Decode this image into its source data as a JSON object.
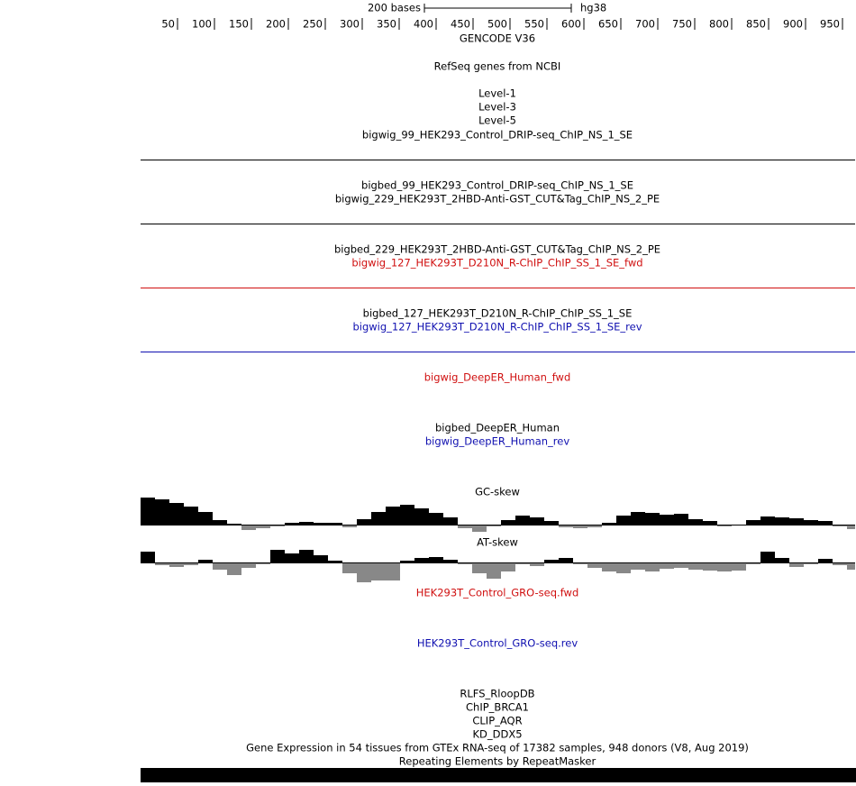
{
  "ruler": {
    "scale_label": "200 bases",
    "assembly": "hg38",
    "positions": [
      50,
      100,
      150,
      200,
      250,
      300,
      350,
      400,
      450,
      500,
      550,
      600,
      650,
      700,
      750,
      800,
      850,
      900,
      950
    ]
  },
  "tracks": [
    "GENCODE V36",
    "RefSeq genes from NCBI",
    "Level-1",
    "Level-3",
    "Level-5",
    "bigwig_99_HEK293_Control_DRIP-seq_ChIP_NS_1_SE",
    "bigbed_99_HEK293_Control_DRIP-seq_ChIP_NS_1_SE",
    "bigwig_229_HEK293T_2HBD-Anti-GST_CUT&Tag_ChIP_NS_2_PE",
    "bigbed_229_HEK293T_2HBD-Anti-GST_CUT&Tag_ChIP_NS_2_PE",
    "bigwig_127_HEK293T_D210N_R-ChIP_ChIP_SS_1_SE_fwd",
    "bigbed_127_HEK293T_D210N_R-ChIP_ChIP_SS_1_SE",
    "bigwig_127_HEK293T_D210N_R-ChIP_ChIP_SS_1_SE_rev",
    "bigwig_DeepER_Human_fwd",
    "bigbed_DeepER_Human",
    "bigwig_DeepER_Human_rev",
    "HEK293T_Control_GRO-seq.fwd",
    "HEK293T_Control_GRO-seq.rev",
    "RLFS_RloopDB",
    "ChIP_BRCA1",
    "CLIP_AQR",
    "KD_DDX5",
    "Gene Expression in 54 tissues from GTEx RNA-seq of 17382 samples, 948 donors (V8, Aug 2019)",
    "Repeating Elements by RepeatMasker"
  ],
  "skew_tracks": [
    {
      "label": "GC-skew",
      "values": [
        30,
        28,
        24,
        20,
        14,
        5,
        1,
        -6,
        -4,
        -2,
        2,
        3,
        2,
        2,
        -3,
        6,
        14,
        20,
        22,
        18,
        13,
        8,
        -4,
        -8,
        -2,
        5,
        10,
        8,
        4,
        -3,
        -4,
        -3,
        2,
        10,
        14,
        13,
        11,
        12,
        6,
        4,
        -2,
        -1,
        5,
        9,
        8,
        7,
        5,
        4,
        -2,
        -5
      ]
    },
    {
      "label": "AT-skew",
      "values": [
        12,
        -3,
        -5,
        -3,
        3,
        -8,
        -14,
        -6,
        -2,
        14,
        10,
        14,
        8,
        2,
        -12,
        -22,
        -20,
        -20,
        2,
        5,
        6,
        3,
        -2,
        -12,
        -18,
        -10,
        -2,
        -4,
        3,
        5,
        -2,
        -6,
        -10,
        -12,
        -8,
        -10,
        -7,
        -6,
        -8,
        -9,
        -10,
        -9,
        -2,
        12,
        5,
        -5,
        -2,
        4,
        -3,
        -8
      ]
    }
  ]
}
